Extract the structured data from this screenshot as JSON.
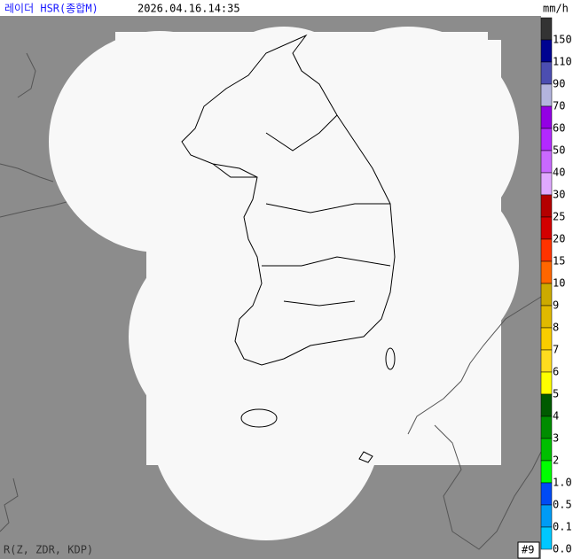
{
  "header": {
    "title": "레이더 HSR(종합M)",
    "timestamp": "2026.04.16.14:35",
    "unit": "mm/h"
  },
  "legend": {
    "items": [
      {
        "label": "150",
        "color": "#333333"
      },
      {
        "label": "110",
        "color": "#000390"
      },
      {
        "label": "90",
        "color": "#4c4eb1"
      },
      {
        "label": "70",
        "color": "#b3b4de"
      },
      {
        "label": "60",
        "color": "#9300e4"
      },
      {
        "label": "50",
        "color": "#b329ff"
      },
      {
        "label": "40",
        "color": "#c969ff"
      },
      {
        "label": "30",
        "color": "#e0a9ff"
      },
      {
        "label": "25",
        "color": "#b40000"
      },
      {
        "label": "20",
        "color": "#d20000"
      },
      {
        "label": "15",
        "color": "#ff3300"
      },
      {
        "label": "10",
        "color": "#ff6600"
      },
      {
        "label": "9",
        "color": "#ccaa00"
      },
      {
        "label": "8",
        "color": "#e0b900"
      },
      {
        "label": "7",
        "color": "#f9cd00"
      },
      {
        "label": "6",
        "color": "#ffdc1f"
      },
      {
        "label": "5",
        "color": "#ffff00"
      },
      {
        "label": "4",
        "color": "#005a00"
      },
      {
        "label": "3",
        "color": "#008c00"
      },
      {
        "label": "2",
        "color": "#00be00"
      },
      {
        "label": "1.0",
        "color": "#00ff00"
      },
      {
        "label": "0.5",
        "color": "#004af5"
      },
      {
        "label": "0.1",
        "color": "#009bf5"
      },
      {
        "label": "0.0",
        "color": "#00c8ff"
      }
    ]
  },
  "footer": {
    "method": "R(Z, ZDR, KDP)",
    "site_count": "#9"
  }
}
